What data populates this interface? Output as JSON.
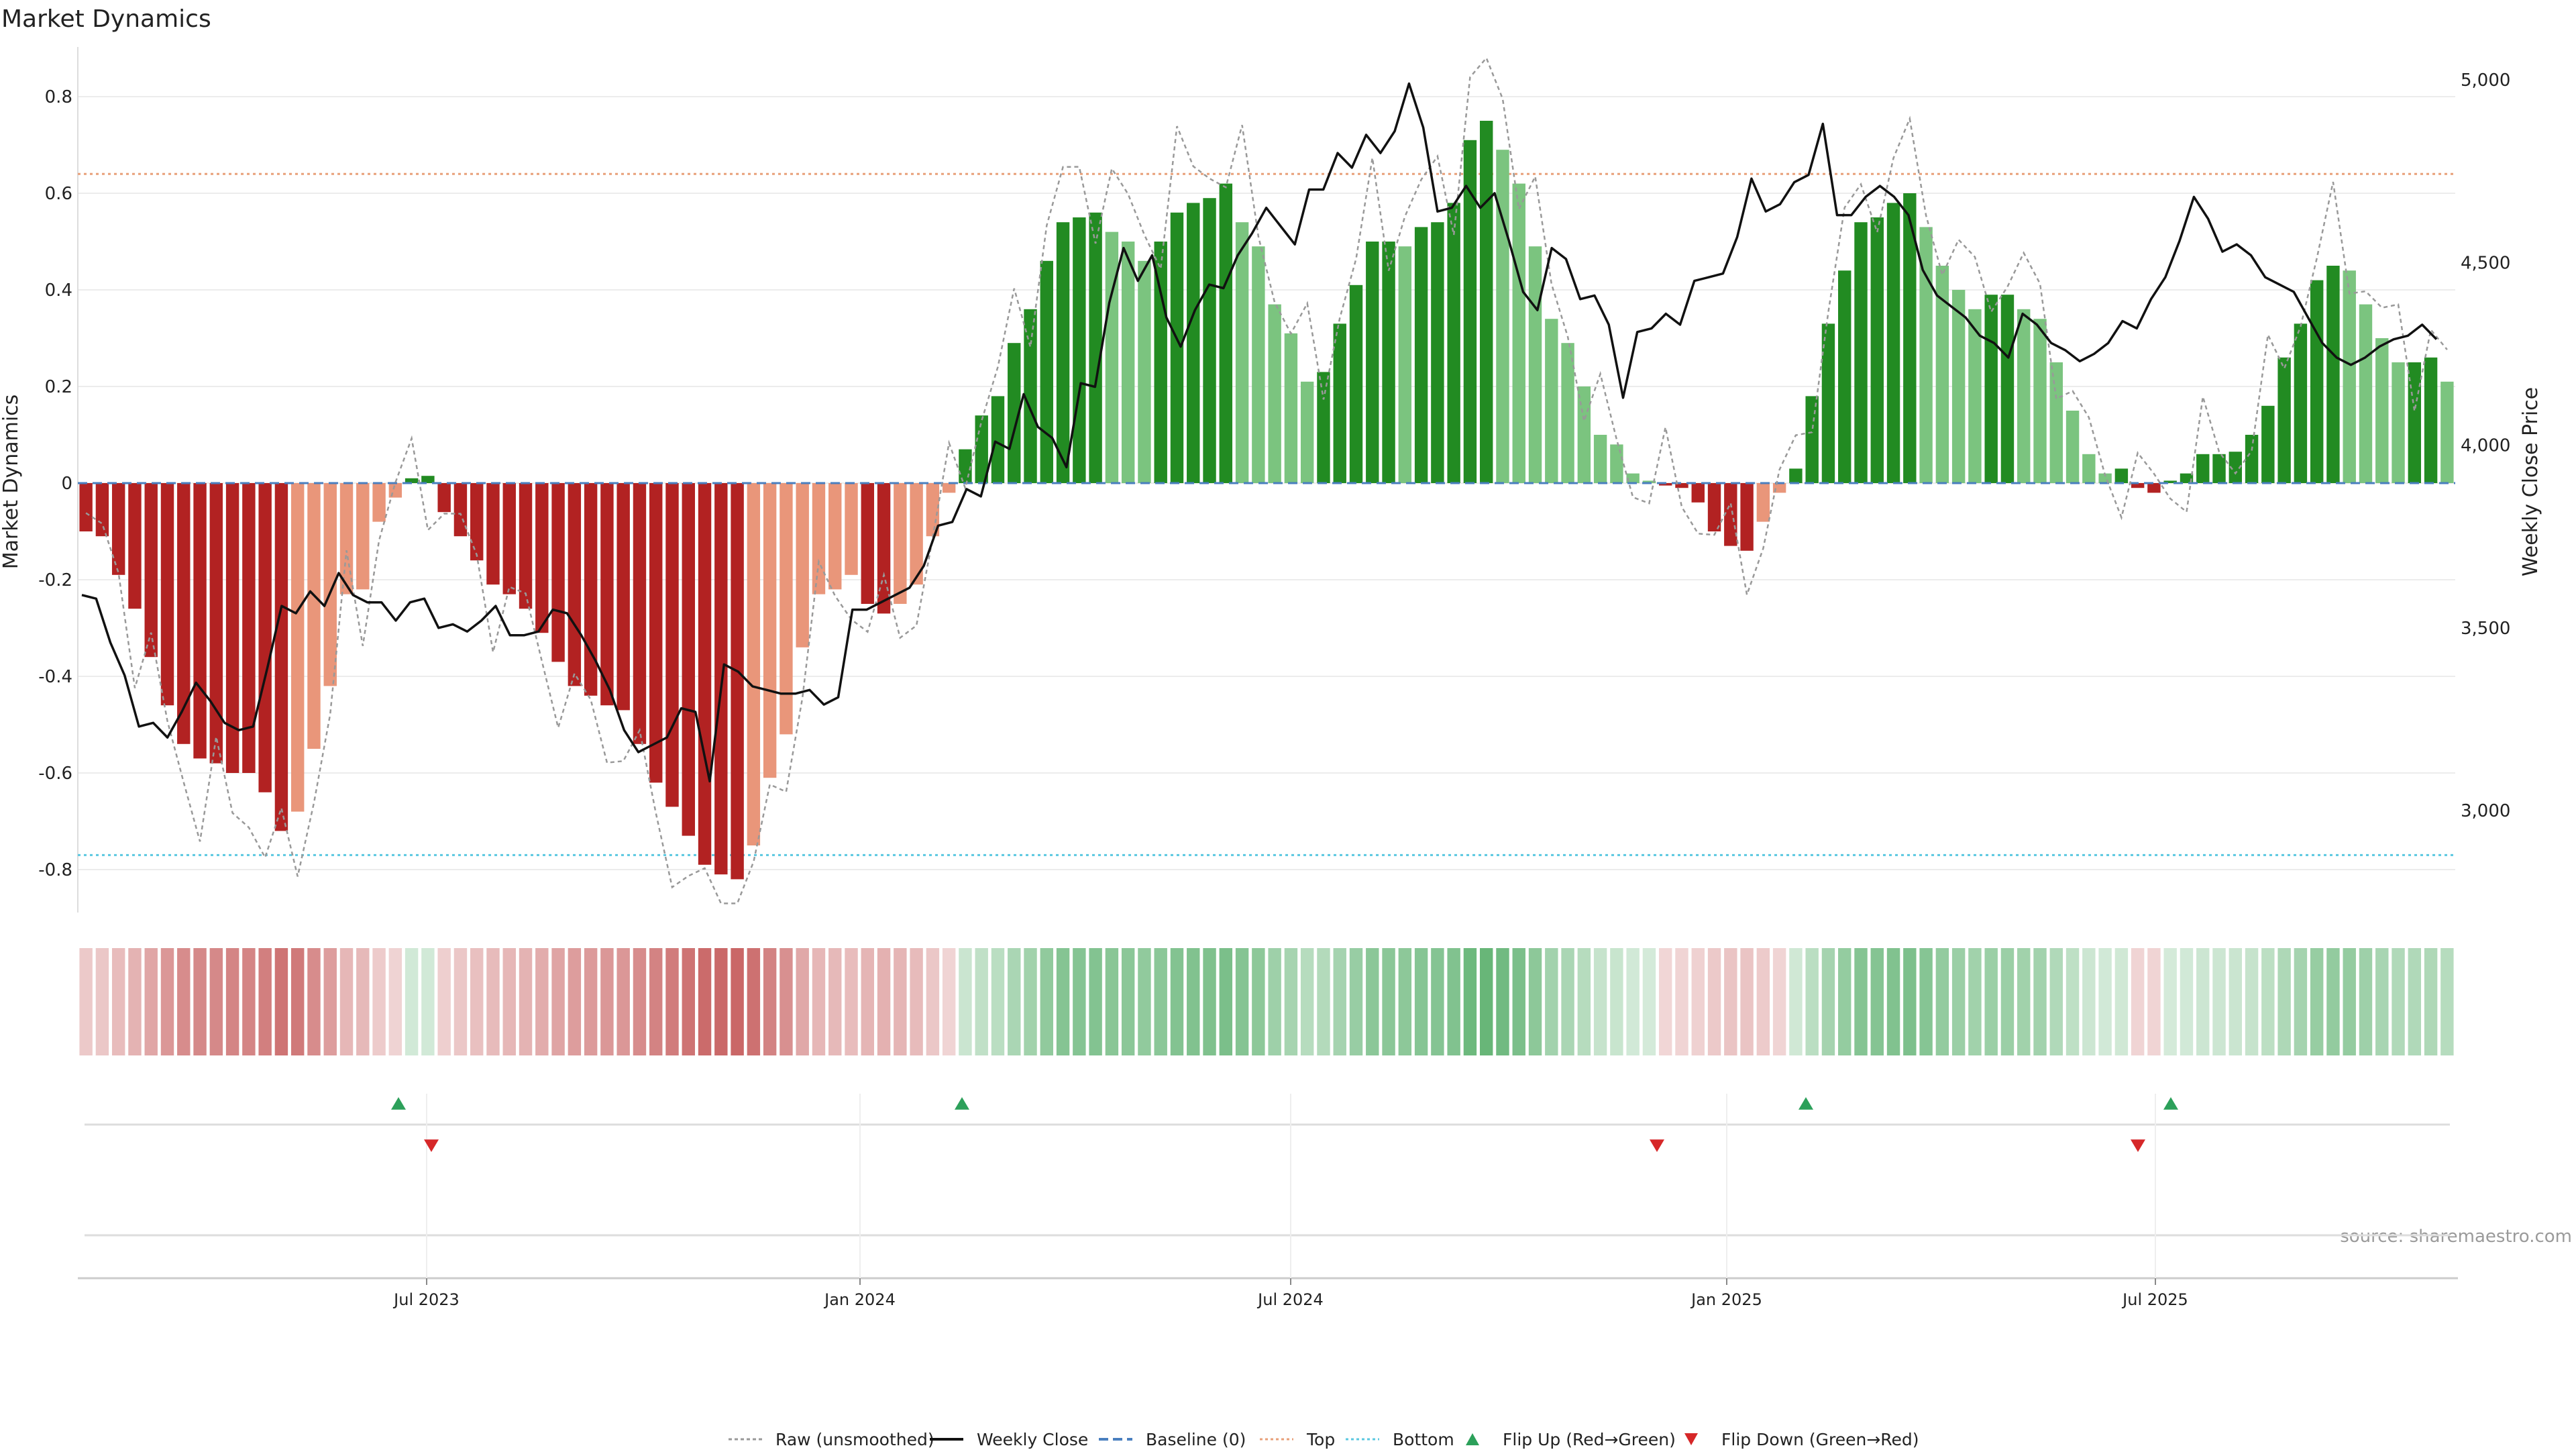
{
  "chart_data": {
    "type": "bar",
    "title": "Market Dynamics",
    "ylabel": "Market Dynamics",
    "y2label": "Weekly Close Price",
    "ylim": [
      -0.88,
      0.88
    ],
    "y2lim": [
      2780,
      5060
    ],
    "grid": true,
    "x_tick_labels": [
      "Jul 2023",
      "Jan 2024",
      "Jul 2024",
      "Jan 2025",
      "Jul 2025"
    ],
    "y_tick_labels": [
      "0.8",
      "0.6",
      "0.4",
      "0.2",
      "0",
      "-0.2",
      "-0.4",
      "-0.6",
      "-0.8"
    ],
    "y2_tick_labels": [
      "5,000",
      "4,500",
      "4,000",
      "3,500",
      "3,000"
    ],
    "top_level": 0.64,
    "bottom_level": -0.77,
    "baseline": 0,
    "source_note": "source: sharemaestro.com",
    "legend": {
      "placement": "bottom-center",
      "entries": [
        {
          "label": "Raw (unsmoothed)",
          "style": "dotted-gray"
        },
        {
          "label": "Weekly Close",
          "style": "solid-black"
        },
        {
          "label": "Baseline (0)",
          "style": "dashed-blue"
        },
        {
          "label": "Top",
          "style": "dotted-salmon"
        },
        {
          "label": "Bottom",
          "style": "dotted-cyan"
        },
        {
          "label": "Flip Up (Red→Green)",
          "style": "triangle-up-green"
        },
        {
          "label": "Flip Down (Green→Red)",
          "style": "triangle-down-red"
        }
      ]
    },
    "colors": {
      "red_strong": "#b22222",
      "red_light": "#e9967a",
      "green_strong": "#228b22",
      "green_light": "#7bc47f",
      "close_line": "#111111",
      "raw_line": "#999999",
      "baseline": "#4a7fbf",
      "top": "#e8a07a",
      "bottom": "#5bc8e0",
      "flip_up": "#2ca05a",
      "flip_down": "#d62728"
    },
    "bars": [
      -0.1,
      -0.11,
      -0.19,
      -0.26,
      -0.36,
      -0.46,
      -0.54,
      -0.57,
      -0.58,
      -0.6,
      -0.6,
      -0.64,
      -0.72,
      -0.68,
      -0.55,
      -0.42,
      -0.23,
      -0.22,
      -0.08,
      -0.03,
      0.01,
      0.015,
      -0.06,
      -0.11,
      -0.16,
      -0.21,
      -0.23,
      -0.26,
      -0.31,
      -0.37,
      -0.42,
      -0.44,
      -0.46,
      -0.47,
      -0.54,
      -0.62,
      -0.67,
      -0.73,
      -0.79,
      -0.81,
      -0.82,
      -0.75,
      -0.61,
      -0.52,
      -0.34,
      -0.23,
      -0.22,
      -0.19,
      -0.25,
      -0.27,
      -0.25,
      -0.21,
      -0.11,
      -0.02,
      0.07,
      0.14,
      0.18,
      0.29,
      0.36,
      0.46,
      0.54,
      0.55,
      0.56,
      0.52,
      0.5,
      0.46,
      0.5,
      0.56,
      0.58,
      0.59,
      0.62,
      0.54,
      0.49,
      0.37,
      0.31,
      0.21,
      0.23,
      0.33,
      0.41,
      0.5,
      0.5,
      0.49,
      0.53,
      0.54,
      0.58,
      0.71,
      0.75,
      0.69,
      0.62,
      0.49,
      0.34,
      0.29,
      0.2,
      0.1,
      0.08,
      0.02,
      0.005,
      -0.005,
      -0.01,
      -0.04,
      -0.1,
      -0.13,
      -0.14,
      -0.08,
      -0.02,
      0.03,
      0.18,
      0.33,
      0.44,
      0.54,
      0.55,
      0.58,
      0.6,
      0.53,
      0.45,
      0.4,
      0.36,
      0.39,
      0.39,
      0.36,
      0.34,
      0.25,
      0.15,
      0.06,
      0.02,
      0.03,
      -0.01,
      -0.02,
      0.005,
      0.02,
      0.06,
      0.06,
      0.065,
      0.1,
      0.16,
      0.26,
      0.33,
      0.42,
      0.45,
      0.44,
      0.37,
      0.3,
      0.25,
      0.25,
      0.26,
      0.21
    ],
    "weekly_close": [
      3590,
      3580,
      3460,
      3370,
      3230,
      3240,
      3200,
      3270,
      3350,
      3300,
      3240,
      3220,
      3230,
      3390,
      3560,
      3540,
      3600,
      3560,
      3650,
      3590,
      3570,
      3570,
      3520,
      3570,
      3580,
      3500,
      3510,
      3490,
      3520,
      3560,
      3480,
      3480,
      3490,
      3550,
      3540,
      3480,
      3410,
      3330,
      3220,
      3160,
      3180,
      3200,
      3280,
      3270,
      3080,
      3400,
      3380,
      3340,
      3330,
      3320,
      3320,
      3330,
      3290,
      3310,
      3550,
      3550,
      3570,
      3590,
      3610,
      3670,
      3780,
      3790,
      3880,
      3860,
      4010,
      3990,
      4140,
      4050,
      4020,
      3940,
      4170,
      4160,
      4390,
      4540,
      4450,
      4520,
      4350,
      4270,
      4370,
      4440,
      4430,
      4520,
      4580,
      4650,
      4600,
      4550,
      4700,
      4700,
      4800,
      4760,
      4850,
      4800,
      4860,
      4990,
      4870,
      4640,
      4650,
      4710,
      4650,
      4690,
      4560,
      4420,
      4370,
      4540,
      4510,
      4400,
      4410,
      4330,
      4130,
      4310,
      4320,
      4360,
      4330,
      4450,
      4460,
      4470,
      4570,
      4730,
      4640,
      4660,
      4720,
      4740,
      4880,
      4630,
      4630,
      4680,
      4710,
      4680,
      4630,
      4480,
      4410,
      4380,
      4350,
      4300,
      4280,
      4240,
      4360,
      4330,
      4280,
      4260,
      4230,
      4250,
      4280,
      4340,
      4320,
      4400,
      4460,
      4560,
      4680,
      4620,
      4530,
      4550,
      4520,
      4460,
      4440,
      4420,
      4350,
      4280,
      4240,
      4220,
      4240,
      4270,
      4290,
      4300,
      4330,
      4290
    ]
  }
}
